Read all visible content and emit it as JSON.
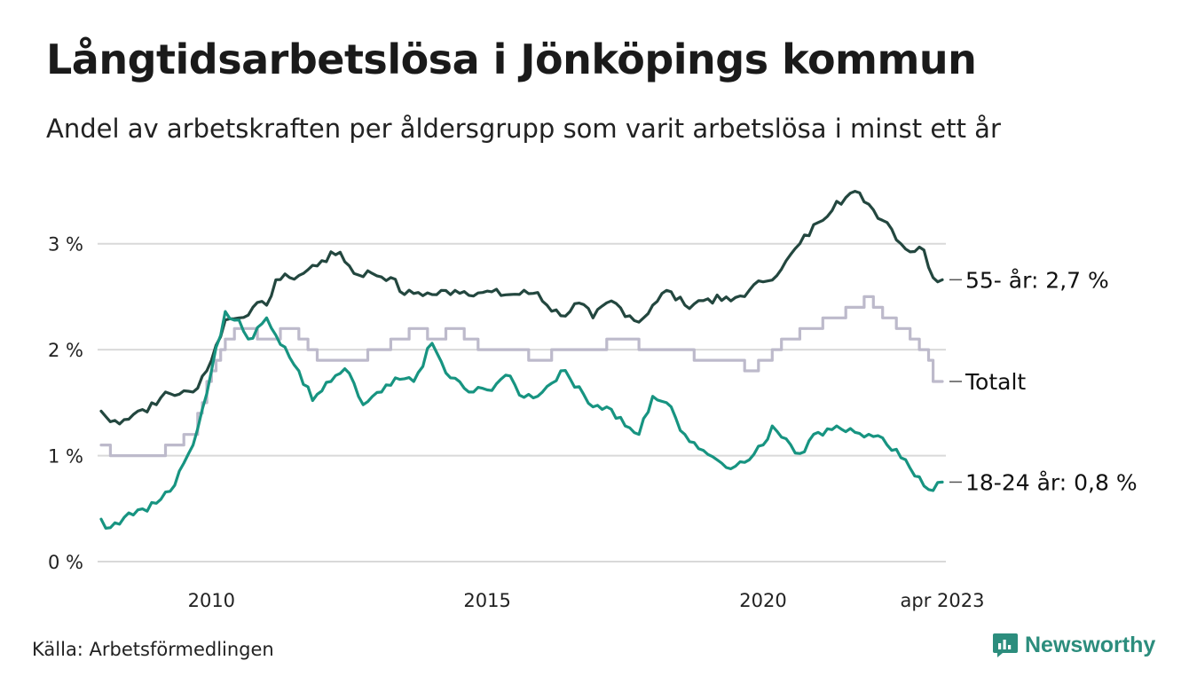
{
  "header": {
    "title": "Långtidsarbetslösa i Jönköpings kommun",
    "subtitle": "Andel av arbetskraften per åldersgrupp som varit arbetslösa i minst ett år"
  },
  "footer": {
    "source": "Källa: Arbetsförmedlingen",
    "brand": "Newsworthy",
    "brand_icon": "newsworthy-logo-icon"
  },
  "colors": {
    "series_55": "#23473f",
    "series_total": "#bdbacb",
    "series_18_24": "#179481",
    "grid": "#d9d9d9",
    "brand": "#2c8d7d"
  },
  "chart_data": {
    "type": "line",
    "title": "Långtidsarbetslösa i Jönköpings kommun",
    "subtitle": "Andel av arbetskraften per åldersgrupp som varit arbetslösa i minst ett år",
    "xlabel": "",
    "ylabel": "",
    "x_range": [
      "2008-01",
      "2023-04"
    ],
    "xticks": [
      {
        "date": "2010-01",
        "label": "2010"
      },
      {
        "date": "2015-01",
        "label": "2015"
      },
      {
        "date": "2020-01",
        "label": "2020"
      },
      {
        "date": "2023-04",
        "label": "apr 2023"
      }
    ],
    "ylim": [
      0,
      3.5
    ],
    "yticks": [
      {
        "value": 0,
        "label": "0 %"
      },
      {
        "value": 1,
        "label": "1 %"
      },
      {
        "value": 2,
        "label": "2 %"
      },
      {
        "value": 3,
        "label": "3 %"
      }
    ],
    "grid": "horizontal",
    "series": [
      {
        "name": "55- år",
        "end_label": "55- år: 2,7 %",
        "color": "#23473f",
        "points": [
          [
            "2008-01",
            1.42
          ],
          [
            "2008-03",
            1.32
          ],
          [
            "2008-06",
            1.34
          ],
          [
            "2008-09",
            1.42
          ],
          [
            "2009-01",
            1.48
          ],
          [
            "2009-03",
            1.6
          ],
          [
            "2009-06",
            1.58
          ],
          [
            "2009-09",
            1.6
          ],
          [
            "2010-01",
            1.9
          ],
          [
            "2010-04",
            2.28
          ],
          [
            "2010-07",
            2.3
          ],
          [
            "2010-10",
            2.4
          ],
          [
            "2011-01",
            2.42
          ],
          [
            "2011-03",
            2.66
          ],
          [
            "2011-06",
            2.68
          ],
          [
            "2011-09",
            2.72
          ],
          [
            "2012-01",
            2.84
          ],
          [
            "2012-05",
            2.92
          ],
          [
            "2012-08",
            2.72
          ],
          [
            "2012-12",
            2.72
          ],
          [
            "2013-04",
            2.68
          ],
          [
            "2013-07",
            2.52
          ],
          [
            "2013-10",
            2.54
          ],
          [
            "2014-01",
            2.52
          ],
          [
            "2014-06",
            2.56
          ],
          [
            "2014-12",
            2.54
          ],
          [
            "2015-06",
            2.52
          ],
          [
            "2015-12",
            2.54
          ],
          [
            "2016-02",
            2.42
          ],
          [
            "2016-05",
            2.32
          ],
          [
            "2016-09",
            2.44
          ],
          [
            "2016-12",
            2.3
          ],
          [
            "2017-04",
            2.46
          ],
          [
            "2017-08",
            2.32
          ],
          [
            "2017-10",
            2.26
          ],
          [
            "2018-01",
            2.42
          ],
          [
            "2018-04",
            2.56
          ],
          [
            "2018-08",
            2.42
          ],
          [
            "2019-01",
            2.48
          ],
          [
            "2019-06",
            2.46
          ],
          [
            "2019-10",
            2.56
          ],
          [
            "2020-01",
            2.64
          ],
          [
            "2020-05",
            2.76
          ],
          [
            "2020-09",
            3.0
          ],
          [
            "2021-01",
            3.2
          ],
          [
            "2021-05",
            3.4
          ],
          [
            "2021-10",
            3.48
          ],
          [
            "2022-01",
            3.32
          ],
          [
            "2022-04",
            3.2
          ],
          [
            "2022-08",
            2.95
          ],
          [
            "2022-12",
            2.94
          ],
          [
            "2023-02",
            2.68
          ],
          [
            "2023-04",
            2.66
          ]
        ]
      },
      {
        "name": "Totalt",
        "end_label": "Totalt",
        "color": "#bdbacb",
        "points": [
          [
            "2008-01",
            1.1
          ],
          [
            "2008-04",
            1.0
          ],
          [
            "2008-09",
            1.0
          ],
          [
            "2009-01",
            1.0
          ],
          [
            "2009-04",
            1.1
          ],
          [
            "2009-09",
            1.2
          ],
          [
            "2010-01",
            1.8
          ],
          [
            "2010-04",
            2.1
          ],
          [
            "2010-08",
            2.2
          ],
          [
            "2011-01",
            2.1
          ],
          [
            "2011-06",
            2.2
          ],
          [
            "2011-10",
            2.0
          ],
          [
            "2012-01",
            1.9
          ],
          [
            "2012-08",
            1.9
          ],
          [
            "2013-01",
            2.0
          ],
          [
            "2013-06",
            2.1
          ],
          [
            "2013-10",
            2.2
          ],
          [
            "2014-01",
            2.1
          ],
          [
            "2014-06",
            2.2
          ],
          [
            "2014-12",
            2.0
          ],
          [
            "2015-06",
            2.0
          ],
          [
            "2015-12",
            1.9
          ],
          [
            "2016-06",
            2.0
          ],
          [
            "2016-12",
            2.0
          ],
          [
            "2017-06",
            2.1
          ],
          [
            "2017-12",
            2.0
          ],
          [
            "2018-06",
            2.0
          ],
          [
            "2018-12",
            1.9
          ],
          [
            "2019-06",
            1.9
          ],
          [
            "2019-10",
            1.8
          ],
          [
            "2020-01",
            1.9
          ],
          [
            "2020-06",
            2.1
          ],
          [
            "2020-12",
            2.2
          ],
          [
            "2021-04",
            2.3
          ],
          [
            "2021-09",
            2.4
          ],
          [
            "2021-12",
            2.5
          ],
          [
            "2022-03",
            2.3
          ],
          [
            "2022-07",
            2.2
          ],
          [
            "2022-11",
            2.0
          ],
          [
            "2023-01",
            1.9
          ],
          [
            "2023-02",
            1.7
          ],
          [
            "2023-04",
            1.7
          ]
        ]
      },
      {
        "name": "18-24 år",
        "end_label": "18-24 år: 0,8 %",
        "color": "#179481",
        "points": [
          [
            "2008-01",
            0.4
          ],
          [
            "2008-03",
            0.32
          ],
          [
            "2008-07",
            0.46
          ],
          [
            "2009-01",
            0.55
          ],
          [
            "2009-05",
            0.72
          ],
          [
            "2009-09",
            1.1
          ],
          [
            "2010-01",
            1.8
          ],
          [
            "2010-04",
            2.36
          ],
          [
            "2010-07",
            2.28
          ],
          [
            "2010-09",
            2.1
          ],
          [
            "2011-01",
            2.3
          ],
          [
            "2011-04",
            2.05
          ],
          [
            "2011-08",
            1.8
          ],
          [
            "2011-11",
            1.52
          ],
          [
            "2012-03",
            1.7
          ],
          [
            "2012-06",
            1.82
          ],
          [
            "2012-10",
            1.48
          ],
          [
            "2013-02",
            1.6
          ],
          [
            "2013-06",
            1.72
          ],
          [
            "2013-09",
            1.7
          ],
          [
            "2014-01",
            2.06
          ],
          [
            "2014-04",
            1.78
          ],
          [
            "2014-09",
            1.6
          ],
          [
            "2015-01",
            1.62
          ],
          [
            "2015-05",
            1.76
          ],
          [
            "2015-09",
            1.55
          ],
          [
            "2016-01",
            1.6
          ],
          [
            "2016-05",
            1.8
          ],
          [
            "2016-09",
            1.65
          ],
          [
            "2016-12",
            1.46
          ],
          [
            "2017-03",
            1.46
          ],
          [
            "2017-07",
            1.28
          ],
          [
            "2017-10",
            1.2
          ],
          [
            "2018-01",
            1.56
          ],
          [
            "2018-04",
            1.5
          ],
          [
            "2018-08",
            1.2
          ],
          [
            "2018-12",
            1.05
          ],
          [
            "2019-03",
            0.96
          ],
          [
            "2019-07",
            0.9
          ],
          [
            "2019-10",
            0.96
          ],
          [
            "2020-01",
            1.1
          ],
          [
            "2020-03",
            1.28
          ],
          [
            "2020-06",
            1.16
          ],
          [
            "2020-09",
            1.02
          ],
          [
            "2021-01",
            1.22
          ],
          [
            "2021-05",
            1.28
          ],
          [
            "2021-09",
            1.22
          ],
          [
            "2022-01",
            1.18
          ],
          [
            "2022-04",
            1.1
          ],
          [
            "2022-07",
            0.98
          ],
          [
            "2022-11",
            0.8
          ],
          [
            "2023-01",
            0.68
          ],
          [
            "2023-04",
            0.75
          ]
        ]
      }
    ]
  }
}
